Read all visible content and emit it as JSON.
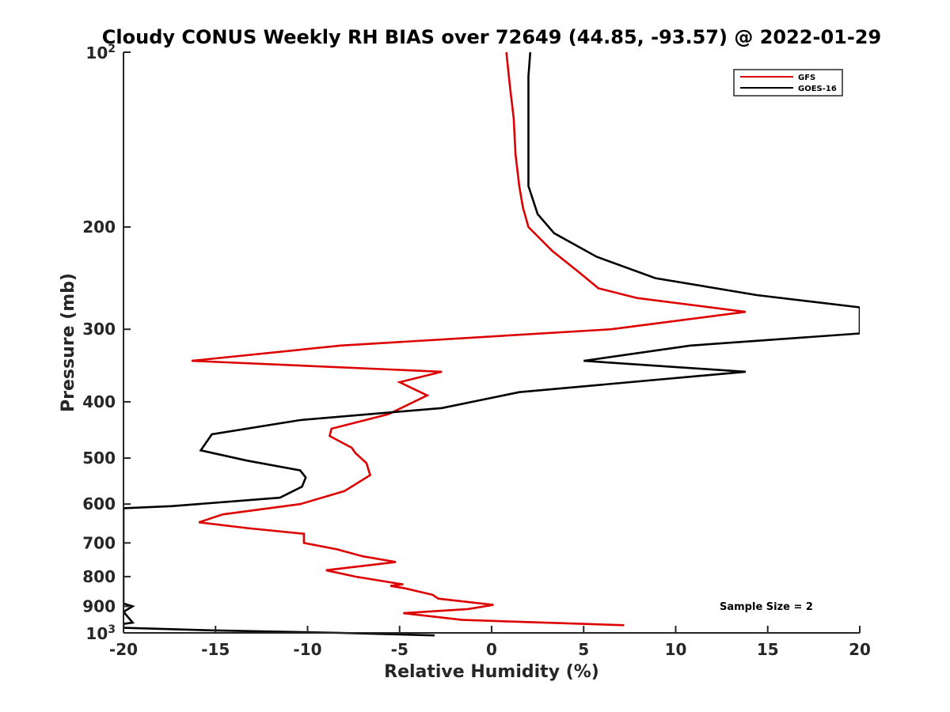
{
  "chart_data": {
    "type": "line",
    "title": "Cloudy CONUS Weekly RH BIAS over 72649 (44.85, -93.57) @ 2022-01-29",
    "xlabel": "Relative Humidity (%)",
    "ylabel": "Pressure (mb)",
    "xlim": [
      -20,
      20
    ],
    "ylim": [
      100,
      1000
    ],
    "y_scale": "log",
    "y_reversed": true,
    "grid": false,
    "legend_position": "top-right",
    "x_ticks": [
      "-20",
      "-15",
      "-10",
      "-5",
      "0",
      "5",
      "10",
      "15",
      "20"
    ],
    "x_tick_values": [
      -20,
      -15,
      -10,
      -5,
      0,
      5,
      10,
      15,
      20
    ],
    "y_ticks": [
      {
        "value": 100,
        "base": "10",
        "exp": "2"
      },
      {
        "value": 200,
        "label": "200"
      },
      {
        "value": 300,
        "label": "300"
      },
      {
        "value": 400,
        "label": "400"
      },
      {
        "value": 500,
        "label": "500"
      },
      {
        "value": 600,
        "label": "600"
      },
      {
        "value": 700,
        "label": "700"
      },
      {
        "value": 800,
        "label": "800"
      },
      {
        "value": 900,
        "label": "900"
      },
      {
        "value": 1000,
        "base": "10",
        "exp": "3"
      }
    ],
    "annotation": "Sample Size = 2",
    "series": [
      {
        "name": "GFS",
        "color": "#dd0000",
        "x": [
          0.8,
          1.0,
          1.2,
          1.3,
          1.5,
          1.7,
          2.0,
          3.3,
          4.8,
          5.8,
          7.9,
          13.8,
          6.5,
          -8.2,
          -16.3,
          -2.7,
          -5.0,
          -3.5,
          -5.6,
          -8.7,
          -8.8,
          -7.6,
          -7.4,
          -6.8,
          -6.6,
          -8.0,
          -10.4,
          -14.6,
          -15.9,
          -13.3,
          -10.2,
          -10.2,
          -8.4,
          -7.0,
          -5.2,
          -9.0,
          -7.4,
          -4.8,
          -5.5,
          -4.7,
          -3.2,
          -2.9,
          0.1,
          -1.3,
          -4.8,
          -1.6,
          7.2
        ],
        "y": [
          100,
          115,
          130,
          150,
          170,
          185,
          200,
          220,
          240,
          255,
          265,
          280,
          300,
          320,
          340,
          355,
          370,
          390,
          420,
          445,
          458,
          480,
          490,
          510,
          535,
          570,
          600,
          625,
          645,
          660,
          675,
          700,
          718,
          738,
          755,
          780,
          800,
          825,
          830,
          838,
          860,
          873,
          895,
          910,
          925,
          950,
          970
        ]
      },
      {
        "name": "GOES-16",
        "color": "#000000",
        "x": [
          2.1,
          2.0,
          2.0,
          2.0,
          2.0,
          2.0,
          2.5,
          3.4,
          5.7,
          8.9,
          14.4,
          20.0,
          20.0,
          10.8,
          5.0,
          13.8,
          1.5,
          -2.7,
          -10.4,
          -15.2,
          -15.8,
          -13.3,
          -10.4,
          -10.1,
          -10.3,
          -11.5,
          -17.4,
          -20.0,
          -20.0,
          -19.5,
          -20.0,
          -19.5,
          -20.0,
          -20.0,
          -15.2,
          -8.2,
          -3.1
        ],
        "y": [
          100,
          110,
          125,
          140,
          155,
          170,
          190,
          205,
          225,
          245,
          262,
          275,
          305,
          320,
          340,
          355,
          385,
          410,
          430,
          455,
          485,
          505,
          525,
          540,
          560,
          585,
          605,
          610,
          890,
          900,
          920,
          960,
          965,
          980,
          990,
          1000,
          1010
        ]
      }
    ]
  }
}
